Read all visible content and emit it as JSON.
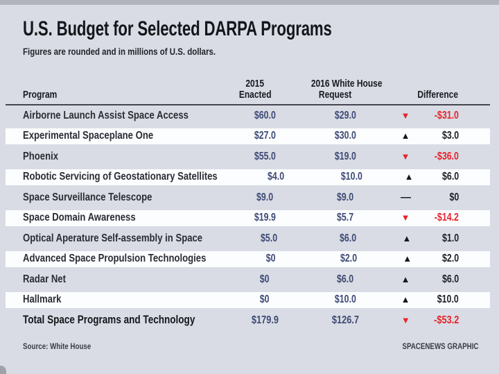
{
  "header": {
    "title": "U.S. Budget for Selected DARPA Programs",
    "subtitle": "Figures are rounded and in millions of U.S. dollars."
  },
  "table": {
    "columns": {
      "program": "Program",
      "enacted_line1": "2015",
      "enacted_line2": "Enacted",
      "request_line1": "2016 White House",
      "request_line2": "Request",
      "difference": "Difference"
    },
    "rows": [
      {
        "program": "Airborne Launch Assist Space Access",
        "enacted": "$60.0",
        "request": "$29.0",
        "direction": "down",
        "difference": "-$31.0"
      },
      {
        "program": "Experimental Spaceplane One",
        "enacted": "$27.0",
        "request": "$30.0",
        "direction": "up",
        "difference": "$3.0"
      },
      {
        "program": "Phoenix",
        "enacted": "$55.0",
        "request": "$19.0",
        "direction": "down",
        "difference": "-$36.0"
      },
      {
        "program": "Robotic Servicing of Geostationary Satellites",
        "enacted": "$4.0",
        "request": "$10.0",
        "direction": "up",
        "difference": "$6.0"
      },
      {
        "program": "Space Surveillance Telescope",
        "enacted": "$9.0",
        "request": "$9.0",
        "direction": "flat",
        "difference": "$0"
      },
      {
        "program": "Space Domain Awareness",
        "enacted": "$19.9",
        "request": "$5.7",
        "direction": "down",
        "difference": "-$14.2"
      },
      {
        "program": "Optical Aperature Self-assembly in Space",
        "enacted": "$5.0",
        "request": "$6.0",
        "direction": "up",
        "difference": "$1.0"
      },
      {
        "program": "Advanced Space Propulsion Technologies",
        "enacted": "$0",
        "request": "$2.0",
        "direction": "up",
        "difference": "$2.0"
      },
      {
        "program": "Radar Net",
        "enacted": "$0",
        "request": "$6.0",
        "direction": "up",
        "difference": "$6.0"
      },
      {
        "program": "Hallmark",
        "enacted": "$0",
        "request": "$10.0",
        "direction": "up",
        "difference": "$10.0"
      }
    ],
    "total_row": {
      "program": "Total Space Programs and Technology",
      "enacted": "$179.9",
      "request": "$126.7",
      "direction": "down",
      "difference": "-$53.2"
    }
  },
  "icons": {
    "up": "▲",
    "down": "▼",
    "flat": "—"
  },
  "footer": {
    "source": "Source: White House",
    "credit": "SPACENEWS GRAPHIC"
  },
  "colors": {
    "background": "#d9dce4",
    "stripe_white": "#fcfdff",
    "value_blue": "#3e4a75",
    "negative_red": "#e8232b",
    "arrow_black": "#17181c",
    "title_black": "#14161b",
    "rule_gray": "#43464e"
  },
  "chart_data": {
    "type": "table",
    "title": "U.S. Budget for Selected DARPA Programs",
    "subtitle": "Figures are rounded and in millions of U.S. dollars.",
    "columns": [
      "Program",
      "2015 Enacted",
      "2016 White House Request",
      "Difference"
    ],
    "rows": [
      {
        "program": "Airborne Launch Assist Space Access",
        "enacted_2015": 60.0,
        "request_2016": 29.0,
        "difference": -31.0
      },
      {
        "program": "Experimental Spaceplane One",
        "enacted_2015": 27.0,
        "request_2016": 30.0,
        "difference": 3.0
      },
      {
        "program": "Phoenix",
        "enacted_2015": 55.0,
        "request_2016": 19.0,
        "difference": -36.0
      },
      {
        "program": "Robotic Servicing of Geostationary Satellites",
        "enacted_2015": 4.0,
        "request_2016": 10.0,
        "difference": 6.0
      },
      {
        "program": "Space Surveillance Telescope",
        "enacted_2015": 9.0,
        "request_2016": 9.0,
        "difference": 0
      },
      {
        "program": "Space Domain Awareness",
        "enacted_2015": 19.9,
        "request_2016": 5.7,
        "difference": -14.2
      },
      {
        "program": "Optical Aperature Self-assembly in Space",
        "enacted_2015": 5.0,
        "request_2016": 6.0,
        "difference": 1.0
      },
      {
        "program": "Advanced Space Propulsion Technologies",
        "enacted_2015": 0,
        "request_2016": 2.0,
        "difference": 2.0
      },
      {
        "program": "Radar Net",
        "enacted_2015": 0,
        "request_2016": 6.0,
        "difference": 6.0
      },
      {
        "program": "Hallmark",
        "enacted_2015": 0,
        "request_2016": 10.0,
        "difference": 10.0
      }
    ],
    "total": {
      "program": "Total Space Programs and Technology",
      "enacted_2015": 179.9,
      "request_2016": 126.7,
      "difference": -53.2
    },
    "source": "White House",
    "credit": "SPACENEWS GRAPHIC"
  }
}
